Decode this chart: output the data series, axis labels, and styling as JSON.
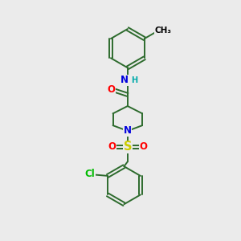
{
  "bg_color": "#ebebeb",
  "bond_color": "#2d6b2d",
  "bond_width": 1.4,
  "atom_colors": {
    "N": "#0000dd",
    "O": "#ff0000",
    "S": "#cccc00",
    "Cl": "#00bb00",
    "H": "#00aaaa",
    "C": "#000000"
  },
  "font_size_atom": 8.5,
  "scale": 1.0
}
